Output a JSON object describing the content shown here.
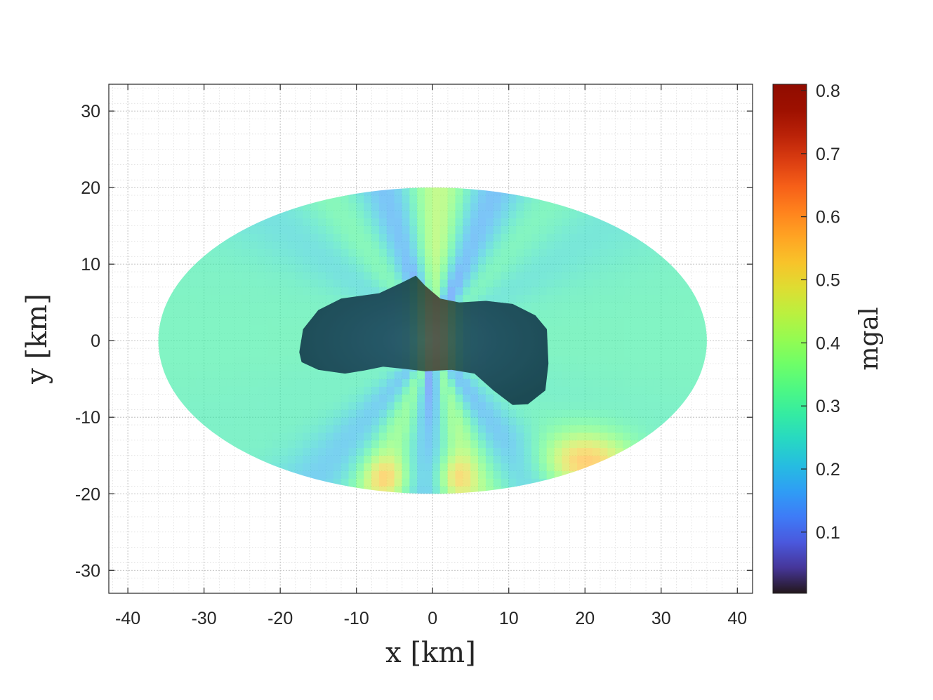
{
  "chart_data": {
    "type": "heatmap",
    "title": "",
    "xlabel": "x [km]",
    "ylabel": "y [km]",
    "xlim": [
      -42.5,
      42
    ],
    "ylim": [
      -33,
      33.5
    ],
    "xticks": [
      -40,
      -30,
      -20,
      -10,
      0,
      10,
      20,
      30,
      40
    ],
    "yticks": [
      -30,
      -20,
      -10,
      0,
      10,
      20,
      30
    ],
    "xtick_labels": [
      "-40",
      "-30",
      "-20",
      "-10",
      "0",
      "10",
      "20",
      "30",
      "40"
    ],
    "ytick_labels": [
      "-30",
      "-20",
      "-10",
      "0",
      "10",
      "20",
      "30"
    ],
    "grid": true,
    "minor_grid": true,
    "colormap": "turbo",
    "domain": {
      "shape": "ellipse",
      "semi_axis_x_km": 36,
      "semi_axis_y_km": 20
    },
    "colorbar": {
      "label": "mgal",
      "range": [
        0.003,
        0.81
      ],
      "ticks": [
        0.1,
        0.2,
        0.3,
        0.4,
        0.5,
        0.6,
        0.7,
        0.8
      ],
      "tick_labels": [
        "0.1",
        "0.2",
        "0.3",
        "0.4",
        "0.5",
        "0.6",
        "0.7",
        "0.8"
      ]
    },
    "body_outline_km": [
      [
        -17.5,
        -1.5
      ],
      [
        -17,
        1.5
      ],
      [
        -15,
        4
      ],
      [
        -12,
        5.5
      ],
      [
        -7,
        6.2
      ],
      [
        -4,
        7.6
      ],
      [
        -2.2,
        8.5
      ],
      [
        -1,
        7.2
      ],
      [
        1,
        5.5
      ],
      [
        3.5,
        5
      ],
      [
        7,
        5.2
      ],
      [
        10.5,
        4.8
      ],
      [
        13.5,
        3.3
      ],
      [
        15,
        1.5
      ],
      [
        15.2,
        -3
      ],
      [
        14.8,
        -6.5
      ],
      [
        12.5,
        -8.3
      ],
      [
        10.5,
        -8.4
      ],
      [
        8,
        -6.5
      ],
      [
        5.5,
        -4.3
      ],
      [
        2.5,
        -3.8
      ],
      [
        -1,
        -4
      ],
      [
        -3.5,
        -3.7
      ],
      [
        -6.5,
        -3.4
      ],
      [
        -9,
        -3.9
      ],
      [
        -11.5,
        -4.3
      ],
      [
        -15,
        -3.8
      ],
      [
        -17.2,
        -2.8
      ]
    ]
  }
}
